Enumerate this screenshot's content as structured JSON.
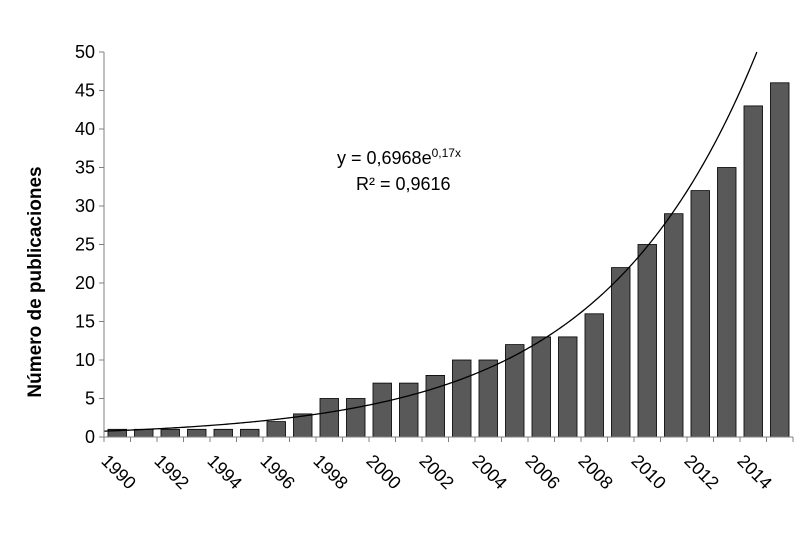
{
  "chart_data": {
    "type": "bar",
    "ylabel": "Número de publicaciones",
    "xlabel": "",
    "ylim": [
      0,
      50
    ],
    "yticks": [
      0,
      5,
      10,
      15,
      20,
      25,
      30,
      35,
      40,
      45,
      50
    ],
    "x": [
      1990,
      1991,
      1992,
      1993,
      1994,
      1995,
      1996,
      1997,
      1998,
      1999,
      2000,
      2001,
      2002,
      2003,
      2004,
      2005,
      2006,
      2007,
      2008,
      2009,
      2010,
      2011,
      2012,
      2013,
      2014,
      2015
    ],
    "xtick_labels": [
      "1990",
      "1992",
      "1994",
      "1996",
      "1998",
      "2000",
      "2002",
      "2004",
      "2006",
      "2008",
      "2010",
      "2012",
      "2014"
    ],
    "values": [
      1,
      1,
      1,
      1,
      1,
      1,
      2,
      3,
      5,
      5,
      7,
      7,
      8,
      10,
      10,
      12,
      13,
      13,
      16,
      22,
      25,
      29,
      32,
      35,
      43,
      46
    ],
    "bar_color": "#595959",
    "trendline": {
      "type": "exponential",
      "a": 0.6968,
      "b": 0.17,
      "color": "#000000",
      "equation_main": "y = 0,6968e",
      "equation_exponent": "0,17x",
      "r2_label": "R² = 0,9616"
    }
  }
}
